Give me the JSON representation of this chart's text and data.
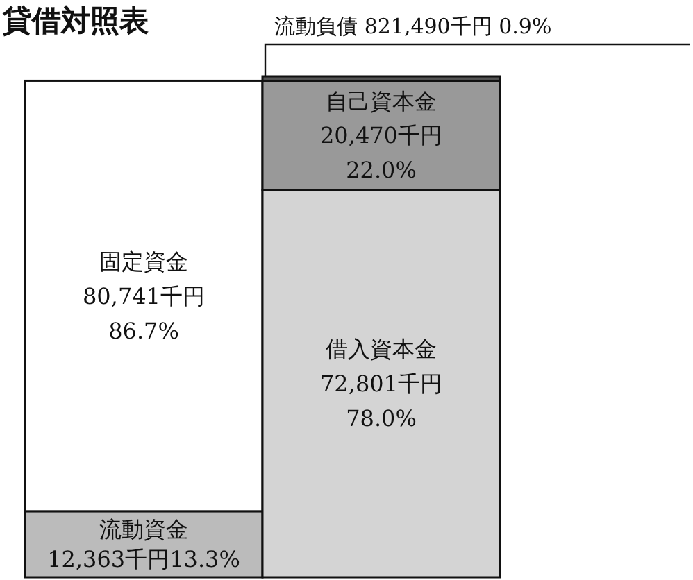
{
  "chart_data": {
    "type": "bar",
    "title": "貸借対照表",
    "stacked": true,
    "categories": [
      null,
      null
    ],
    "series": [
      {
        "name": "流動資金",
        "color": "#bbbbbb",
        "values": [
          13.3,
          null
        ],
        "value_labels": [
          "12,363千円13.3%",
          null
        ]
      },
      {
        "name": "固定資金",
        "color": "#ffffff",
        "values": [
          86.7,
          null
        ],
        "value_labels": [
          "80,741千円 86.7%",
          null
        ]
      },
      {
        "name": "借入資本金",
        "color": "#d4d4d4",
        "values": [
          null,
          78.0
        ],
        "value_labels": [
          null,
          "72,801千円 78.0%"
        ]
      },
      {
        "name": "自己資本金",
        "color": "#999999",
        "values": [
          null,
          22.0
        ],
        "value_labels": [
          null,
          "20,470千円 22.0%"
        ]
      },
      {
        "name": "流動負債",
        "color": "#555555",
        "values": [
          null,
          0.9
        ],
        "value_labels": [
          null,
          "821,490千円 0.9%"
        ]
      }
    ]
  }
}
